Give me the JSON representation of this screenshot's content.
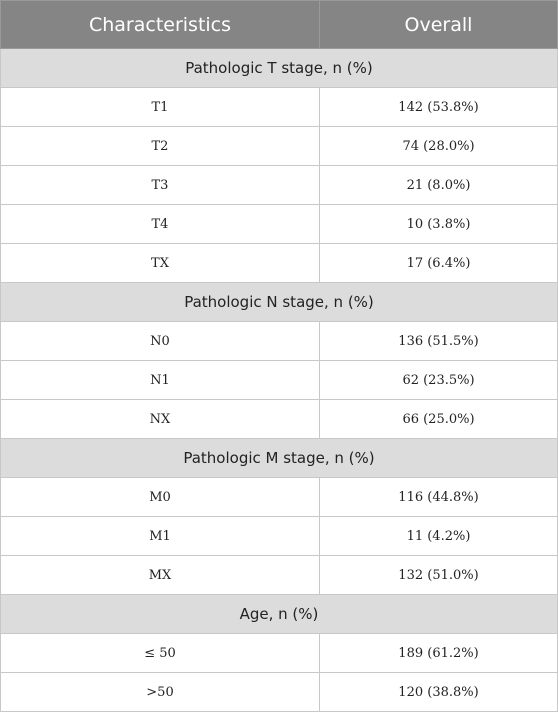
{
  "table": {
    "header": [
      "Characteristics",
      "Overall"
    ],
    "sections": [
      {
        "title": "Pathologic T stage, n (%)",
        "rows": [
          [
            "T1",
            "142 (53.8%)"
          ],
          [
            "T2",
            "74 (28.0%)"
          ],
          [
            "T3",
            "21 (8.0%)"
          ],
          [
            "T4",
            "10 (3.8%)"
          ],
          [
            "TX",
            "17 (6.4%)"
          ]
        ]
      },
      {
        "title": "Pathologic N stage, n (%)",
        "rows": [
          [
            "N0",
            "136 (51.5%)"
          ],
          [
            "N1",
            "62 (23.5%)"
          ],
          [
            "NX",
            "66 (25.0%)"
          ]
        ]
      },
      {
        "title": "Pathologic M stage, n (%)",
        "rows": [
          [
            "M0",
            "116 (44.8%)"
          ],
          [
            "M1",
            "11 (4.2%)"
          ],
          [
            "MX",
            "132 (51.0%)"
          ]
        ]
      },
      {
        "title": "Age, n (%)",
        "rows": [
          [
            "≤ 50",
            "189 (61.2%)"
          ],
          [
            ">50",
            "120 (38.8%)"
          ]
        ]
      }
    ]
  }
}
